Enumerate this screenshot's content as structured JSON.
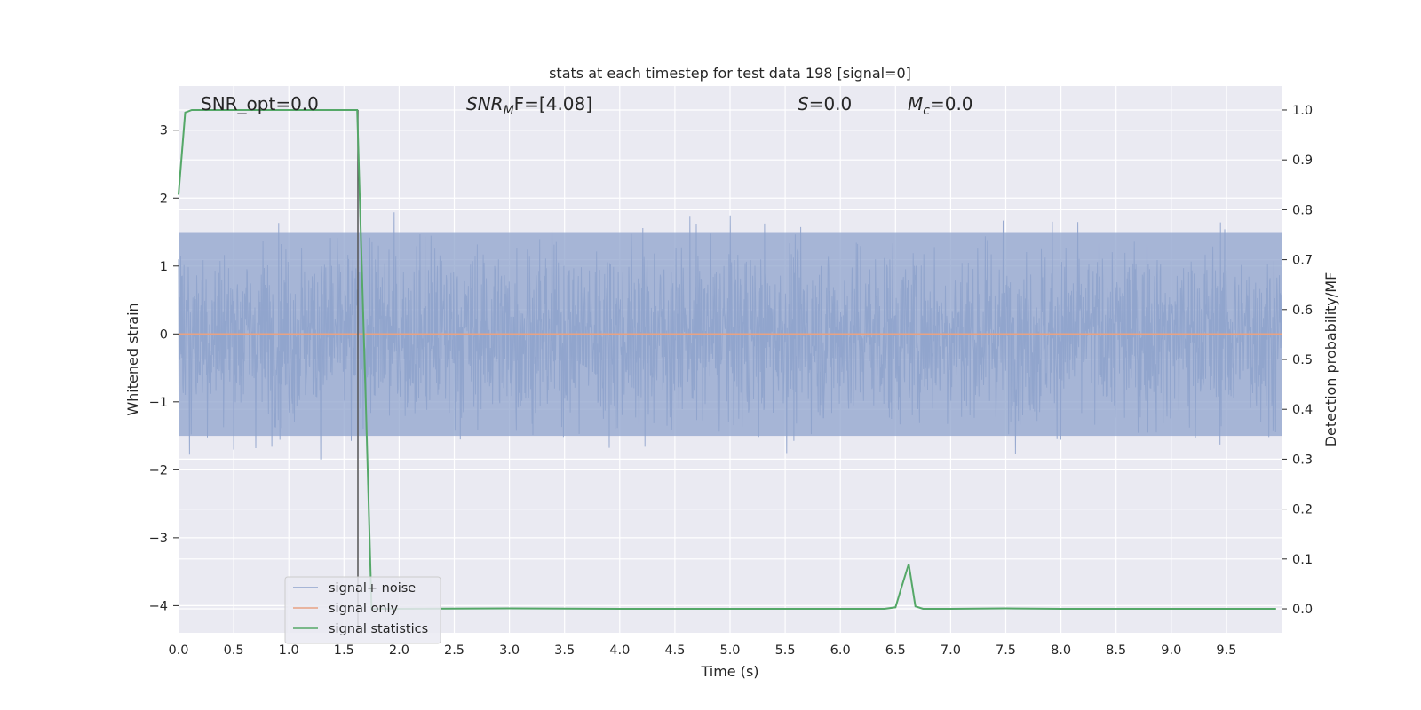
{
  "chart_data": {
    "type": "line",
    "title": "stats at each timestep for test data 198 [signal=0]",
    "xlabel": "Time (s)",
    "ylabel": "Whitened strain",
    "y2label": "Detection probability/MF",
    "xlim": [
      0.0,
      10.0
    ],
    "ylim": [
      -4.4,
      3.65
    ],
    "y2lim": [
      -0.048,
      1.048
    ],
    "xticks": [
      "0.0",
      "0.5",
      "1.0",
      "1.5",
      "2.0",
      "2.5",
      "3.0",
      "3.5",
      "4.0",
      "4.5",
      "5.0",
      "5.5",
      "6.0",
      "6.5",
      "7.0",
      "7.5",
      "8.0",
      "8.5",
      "9.0",
      "9.5"
    ],
    "yticks": [
      "3",
      "2",
      "1",
      "0",
      "−1",
      "−2",
      "−3",
      "−4"
    ],
    "y2ticks": [
      "1.0",
      "0.9",
      "0.8",
      "0.7",
      "0.6",
      "0.5",
      "0.4",
      "0.3",
      "0.2",
      "0.1",
      "0.0"
    ],
    "grid": true,
    "legend_position": "lower-left",
    "annotations": {
      "snr_opt": "SNR_opt=0.0",
      "snr_mf_main": "SNR",
      "snr_mf_sub": "M",
      "snr_mf_rest": "F=[4.08]",
      "s_main": "S",
      "s_rest": "=0.0",
      "mc_main": "M",
      "mc_sub": "c",
      "mc_rest": "=0.0"
    },
    "series": [
      {
        "name": "signal+ noise",
        "color": "#8fa3cc",
        "kind": "noise",
        "typical_band": [
          -1.5,
          1.5
        ],
        "peak_range": [
          -3.5,
          3.55
        ]
      },
      {
        "name": "signal only",
        "color": "#e8a283",
        "x": [
          0.0,
          10.0
        ],
        "y": [
          0.0,
          0.0
        ]
      },
      {
        "name": "signal statistics",
        "color": "#55a868",
        "axis": "right",
        "x": [
          0.0,
          0.06,
          0.12,
          0.2,
          0.4,
          0.6,
          0.8,
          1.0,
          1.2,
          1.4,
          1.55,
          1.62,
          1.7,
          1.75,
          1.8,
          2.0,
          3.0,
          4.0,
          5.0,
          6.0,
          6.4,
          6.5,
          6.55,
          6.62,
          6.68,
          6.75,
          6.8,
          7.0,
          7.5,
          8.0,
          9.0,
          9.95
        ],
        "y": [
          0.83,
          0.995,
          1.0,
          1.0,
          1.0,
          1.0,
          1.0,
          1.0,
          1.0,
          1.0,
          1.0,
          1.0,
          0.4,
          0.0,
          0.0,
          0.0,
          0.001,
          0.0,
          0.0,
          0.0,
          0.0,
          0.003,
          0.04,
          0.09,
          0.005,
          0.0,
          0.0,
          0.0,
          0.001,
          0.0,
          0.0,
          0.0
        ]
      }
    ]
  }
}
